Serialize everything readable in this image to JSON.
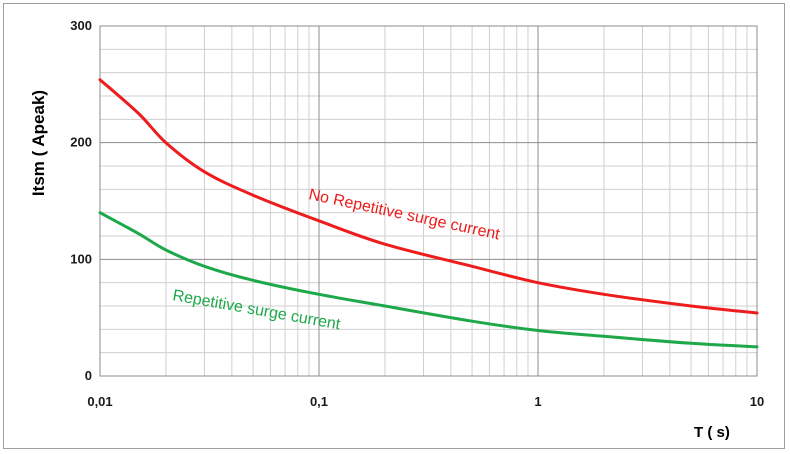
{
  "chart_data": {
    "type": "line",
    "xlabel": "T ( s)",
    "ylabel": "Itsm ( Apeak)",
    "x_scale": "log",
    "xlim": [
      0.01,
      10
    ],
    "ylim": [
      0,
      300
    ],
    "x_ticks": [
      {
        "value": 0.01,
        "label": "0,01"
      },
      {
        "value": 0.1,
        "label": "0,1"
      },
      {
        "value": 1,
        "label": "1"
      },
      {
        "value": 10,
        "label": "10"
      }
    ],
    "y_ticks": [
      {
        "value": 0,
        "label": "0"
      },
      {
        "value": 100,
        "label": "100"
      },
      {
        "value": 200,
        "label": "200"
      },
      {
        "value": 300,
        "label": "300"
      }
    ],
    "grid": true,
    "series": [
      {
        "name": "No Repetitive surge current",
        "color": "#ee1c1c",
        "x": [
          0.01,
          0.015,
          0.02,
          0.03,
          0.05,
          0.1,
          0.2,
          0.5,
          1,
          2,
          5,
          10
        ],
        "values": [
          254,
          225,
          200,
          175,
          155,
          133,
          113,
          94,
          80,
          70,
          60,
          54
        ]
      },
      {
        "name": "Repetitive surge current",
        "color": "#1fa84a",
        "x": [
          0.01,
          0.015,
          0.02,
          0.03,
          0.05,
          0.1,
          0.2,
          0.5,
          1,
          2,
          5,
          10
        ],
        "values": [
          140,
          122,
          108,
          94,
          82,
          70,
          60,
          47,
          39,
          34,
          28,
          25
        ]
      }
    ]
  }
}
